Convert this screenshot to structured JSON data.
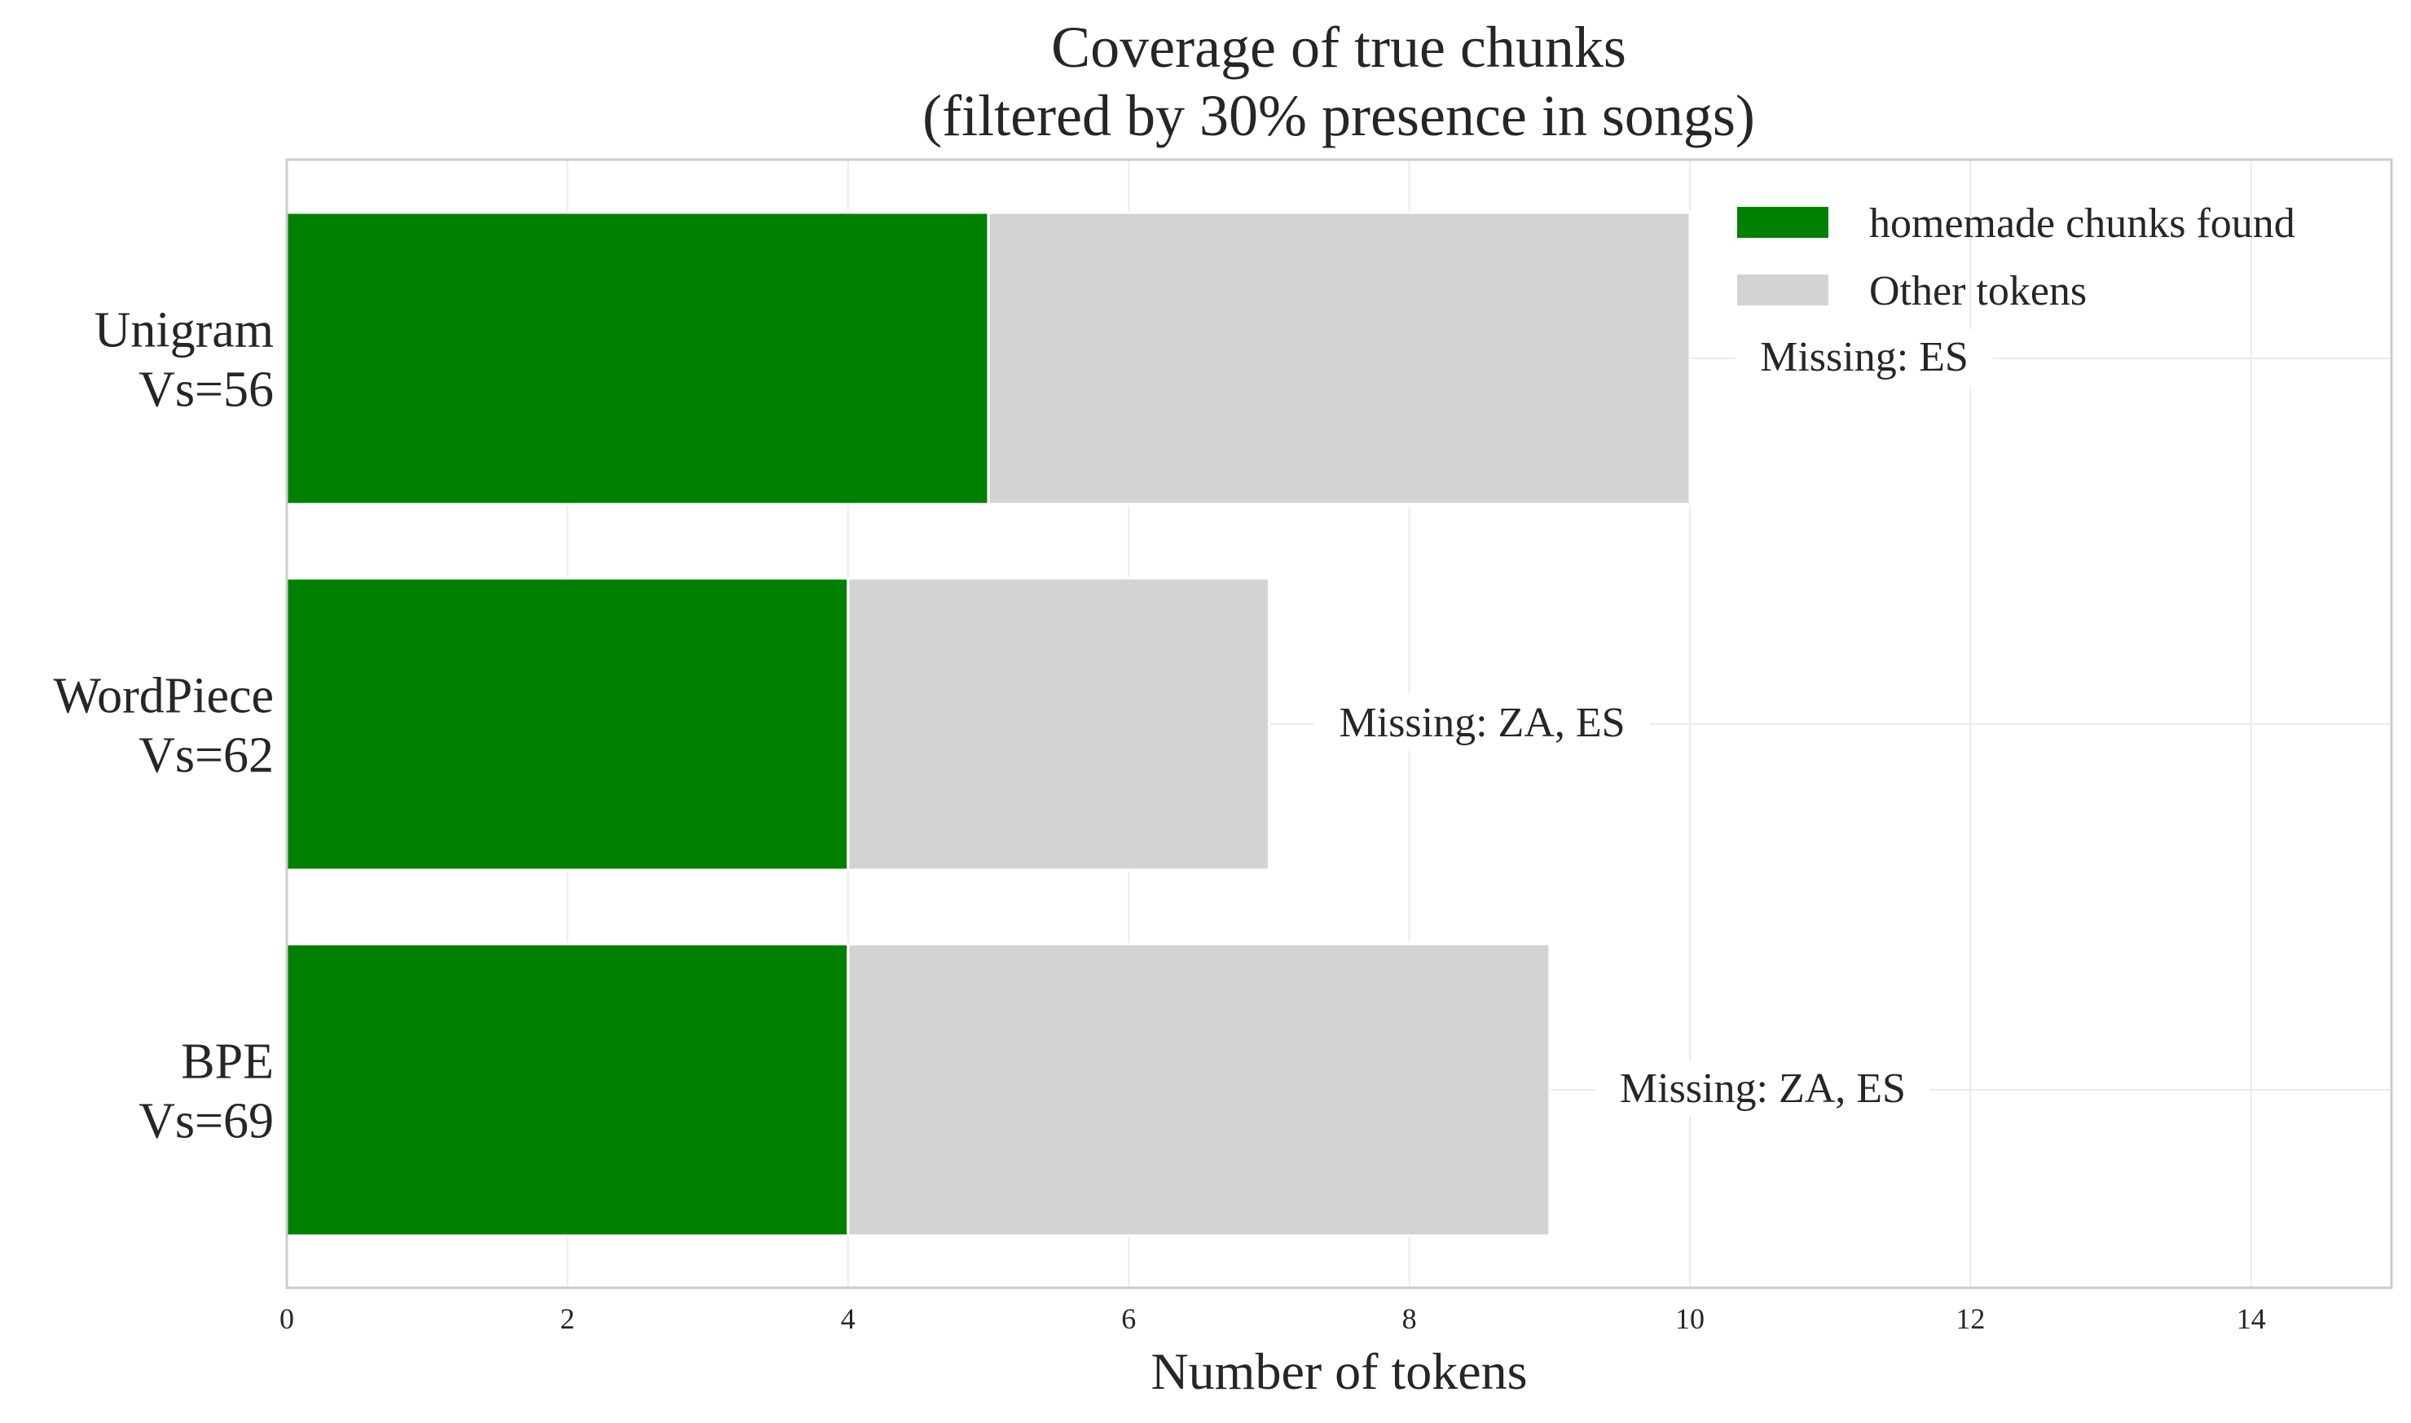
{
  "chart_data": {
    "type": "bar",
    "orientation": "horizontal",
    "stacked": true,
    "title": "Coverage of true chunks\n(filtered by 30% presence in songs)",
    "xlabel": "Number of tokens",
    "ylabel": "",
    "xlim": [
      0,
      15
    ],
    "xticks": [
      0,
      2,
      4,
      6,
      8,
      10,
      12,
      14
    ],
    "grid": true,
    "legend_position": "top-right",
    "categories": [
      "Unigram\nVs=56",
      "WordPiece\nVs=62",
      "BPE\nVs=69"
    ],
    "series": [
      {
        "name": "homemade chunks found",
        "color": "#008000",
        "values": [
          5,
          4,
          4
        ]
      },
      {
        "name": "Other tokens",
        "color": "#d3d3d3",
        "values": [
          5,
          3,
          5
        ]
      }
    ],
    "annotations": [
      "Missing: ES",
      "Missing: ZA, ES",
      "Missing: ZA, ES"
    ]
  }
}
